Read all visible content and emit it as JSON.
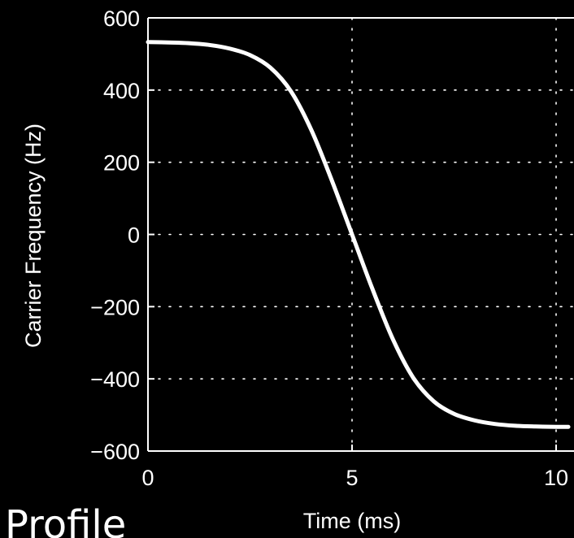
{
  "chart_data": {
    "type": "line",
    "title": "",
    "xlabel": "Time (ms)",
    "ylabel": "Carrier Frequency (Hz)",
    "xlim": [
      0,
      10.4
    ],
    "ylim": [
      -600,
      600
    ],
    "x_ticks": [
      0,
      5,
      10
    ],
    "x_tick_labels": [
      "0",
      "5",
      "10"
    ],
    "y_ticks": [
      600,
      400,
      200,
      0,
      -200,
      -400,
      -600
    ],
    "y_tick_labels": [
      "600",
      "400",
      "200",
      "0",
      "−200",
      "−400",
      "−600"
    ],
    "grid": true,
    "series": [
      {
        "x": [
          0,
          0.5,
          1,
          1.5,
          2,
          2.5,
          3,
          3.5,
          4,
          4.5,
          5,
          5.5,
          6,
          6.5,
          7,
          7.5,
          8,
          8.5,
          9,
          9.5,
          10,
          10.3
        ],
        "y": [
          533,
          532,
          530,
          525,
          515,
          497,
          462,
          397,
          290,
          151,
          0,
          -151,
          -290,
          -397,
          -462,
          -497,
          -515,
          -525,
          -530,
          -532,
          -533,
          -533
        ],
        "color": "#ffffff"
      }
    ]
  },
  "caption_text": "Profile"
}
